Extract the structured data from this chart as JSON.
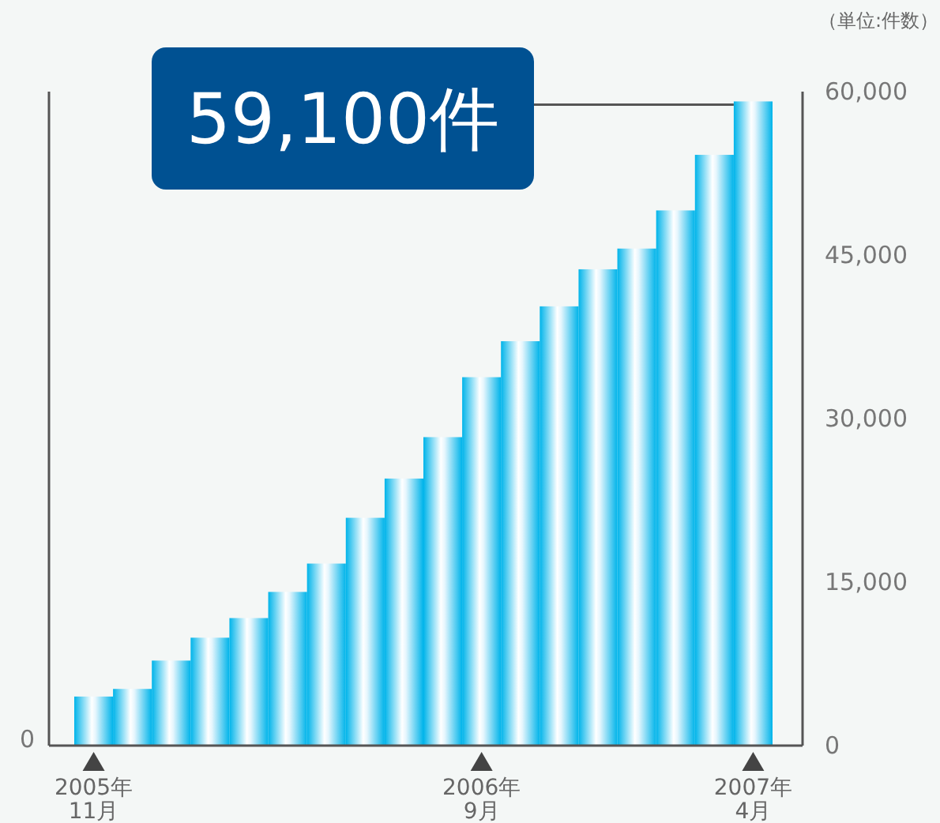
{
  "chart_data": {
    "type": "bar",
    "categories": [
      "2005年\n11月",
      null,
      null,
      null,
      null,
      null,
      null,
      null,
      null,
      null,
      "2006年\n9月",
      null,
      null,
      null,
      null,
      null,
      null,
      "2007年\n4月"
    ],
    "values": [
      4500,
      5200,
      7800,
      9900,
      11700,
      14100,
      16700,
      20900,
      24500,
      28300,
      33800,
      37100,
      40300,
      43700,
      45600,
      49100,
      54200,
      59100
    ],
    "color": "#00b4ea",
    "ylabel": "（単位:件数）",
    "ylim": [
      0,
      60000
    ],
    "yticks": [
      {
        "value": 0,
        "label": "0"
      },
      {
        "value": 15000,
        "label": "15,000"
      },
      {
        "value": 30000,
        "label": "30,000"
      },
      {
        "value": 45000,
        "label": "45,000"
      },
      {
        "value": 60000,
        "label": "60,000"
      }
    ],
    "annotations": [
      "59,100件",
      "0"
    ],
    "grid": false
  }
}
